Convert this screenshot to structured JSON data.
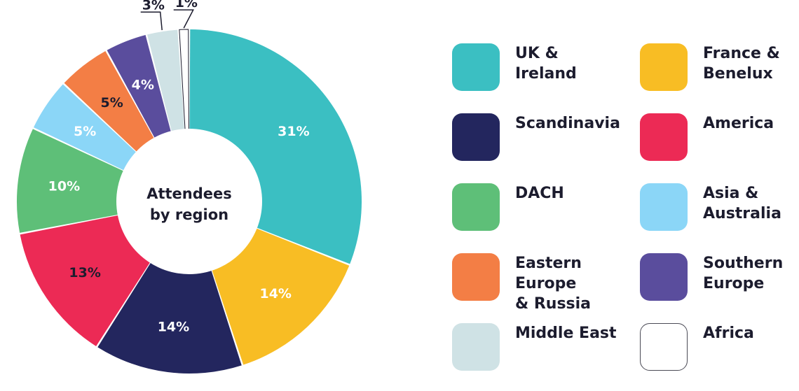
{
  "chart_data": {
    "type": "donut",
    "center_label_lines": [
      "Attendees",
      "by region"
    ],
    "slices": [
      {
        "name": "UK & Ireland",
        "legend_label": "UK &\nIreland",
        "value": 31,
        "label": "31%",
        "color": "#3bbfc2",
        "label_color": "#ffffff"
      },
      {
        "name": "France & Benelux",
        "legend_label": "France &\nBenelux",
        "value": 14,
        "label": "14%",
        "color": "#f8bd24",
        "label_color": "#ffffff"
      },
      {
        "name": "Scandinavia",
        "legend_label": "Scandinavia",
        "value": 14,
        "label": "14%",
        "color": "#23265e",
        "label_color": "#ffffff"
      },
      {
        "name": "America",
        "legend_label": "America",
        "value": 13,
        "label": "13%",
        "color": "#ec2a55",
        "label_color": "#1c1c2e"
      },
      {
        "name": "DACH",
        "legend_label": "DACH",
        "value": 10,
        "label": "10%",
        "color": "#5ebf78",
        "label_color": "#ffffff"
      },
      {
        "name": "Asia & Australia",
        "legend_label": "Asia &\nAustralia",
        "value": 5,
        "label": "5%",
        "color": "#8bd6f7",
        "label_color": "#ffffff"
      },
      {
        "name": "Eastern Europe & Russia",
        "legend_label": "Eastern\nEurope\n& Russia",
        "value": 5,
        "label": "5%",
        "color": "#f37e45",
        "label_color": "#1c1c2e"
      },
      {
        "name": "Southern Europe",
        "legend_label": "Southern\nEurope",
        "value": 4,
        "label": "4%",
        "color": "#5a4d9d",
        "label_color": "#ffffff"
      },
      {
        "name": "Middle East",
        "legend_label": "Middle East",
        "value": 3,
        "label": "3%",
        "color": "#cfe2e5",
        "label_color": "#1c1c2e",
        "callout": true
      },
      {
        "name": "Africa",
        "legend_label": "Africa",
        "value": 1,
        "label": "1%",
        "color": "#ffffff",
        "label_color": "#1c1c2e",
        "callout": true,
        "outlined": true
      }
    ],
    "legend_order": [
      "UK & Ireland",
      "France & Benelux",
      "Scandinavia",
      "America",
      "DACH",
      "Asia & Australia",
      "Eastern Europe & Russia",
      "Southern Europe",
      "Middle East",
      "Africa"
    ],
    "legend_layout": "right, 2 columns"
  }
}
